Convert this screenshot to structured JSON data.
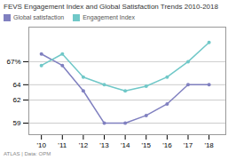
{
  "chart_data": {
    "type": "line",
    "title": "FEVS Engagement Index and Global Satisfaction Trends 2010-2018",
    "caption": "ATLAS   | Data: OPM",
    "x": [
      2010,
      2011,
      2012,
      2013,
      2014,
      2015,
      2016,
      2017,
      2018
    ],
    "series": [
      {
        "name": "Global satisfaction",
        "color": "#8080c0",
        "values": [
          68.0,
          66.5,
          63.2,
          59.0,
          59.0,
          60.0,
          61.5,
          64.0,
          64.0
        ]
      },
      {
        "name": "Engagement Index",
        "color": "#70c8c8",
        "values": [
          66.5,
          68.0,
          65.0,
          64.0,
          63.2,
          63.8,
          65.0,
          67.0,
          69.5
        ]
      }
    ],
    "xlim": [
      2009.4,
      2018.8
    ],
    "xticks": [
      {
        "value": 2010,
        "label": "'10"
      },
      {
        "value": 2011,
        "label": "'11"
      },
      {
        "value": 2012,
        "label": "'12"
      },
      {
        "value": 2013,
        "label": "'13"
      },
      {
        "value": 2014,
        "label": "'14"
      },
      {
        "value": 2015,
        "label": "'15"
      },
      {
        "value": 2016,
        "label": "'16"
      },
      {
        "value": 2017,
        "label": "'17"
      },
      {
        "value": 2018,
        "label": "'18"
      }
    ],
    "ylim": [
      57.5,
      71.5
    ],
    "yticks": [
      59,
      62,
      64,
      {
        "value": 67,
        "label": "67%"
      }
    ],
    "grid": "y",
    "legend": "top",
    "marker": "circle"
  }
}
